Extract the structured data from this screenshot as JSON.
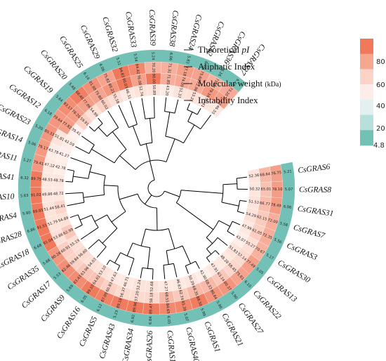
{
  "tracks": [
    {
      "label": "Theoretical ",
      "label_italic": "pI",
      "unit": ""
    },
    {
      "label": "Aliphatic Index",
      "label_italic": "",
      "unit": ""
    },
    {
      "label": "Molecular weight ",
      "label_italic": "",
      "unit": "(kDa)"
    },
    {
      "label": "Instability Index",
      "label_italic": "",
      "unit": ""
    }
  ],
  "legend": {
    "ticks": [
      "80",
      "60",
      "40",
      "20",
      "4.8"
    ],
    "colors": [
      "#f0795c",
      "#f6a88f",
      "#fbd3c7",
      "#fdecea",
      "#e2f1ef",
      "#b7e0db",
      "#73c1b6"
    ]
  },
  "colors": {
    "pi_band": "#73c1b6",
    "branch": "#000000",
    "high": "#f0795c",
    "mid": "#fde0d6",
    "low": "#73c1b6"
  },
  "genes": [
    {
      "name": "CsGRAS6",
      "pi": "5.21",
      "ai": "76.75",
      "mw": "68.64",
      "ii": "52.36"
    },
    {
      "name": "CsGRAS8",
      "pi": "5.07",
      "ai": "78.10",
      "mw": "65.01",
      "ii": "50.32"
    },
    {
      "name": "CsGRAS31",
      "pi": "6.06",
      "ai": "78.49",
      "mw": "66.77",
      "ii": "51.53"
    },
    {
      "name": "CsGRAS7",
      "pi": "5.58",
      "ai": "72.00",
      "mw": "62.15",
      "ii": "54.29"
    },
    {
      "name": "CsGRAS3",
      "pi": "5.56",
      "ai": "72.35",
      "mw": "61.05",
      "ii": "47.99"
    },
    {
      "name": "CsGRAS30",
      "pi": "5.17",
      "ai": "70.67",
      "mw": "55.27",
      "ii": "43.07"
    },
    {
      "name": "CsGRAS13",
      "pi": "5.05",
      "ai": "77.49",
      "mw": "57.14",
      "ii": "51.83"
    },
    {
      "name": "CsGRAS22",
      "pi": "6.10",
      "ai": "75.61",
      "mw": "58.45",
      "ii": "48.28"
    },
    {
      "name": "CsGRAS27",
      "pi": "5.90",
      "ai": "80.37",
      "mw": "63.14",
      "ii": "47.91"
    },
    {
      "name": "CsGRAS21",
      "pi": "5.90",
      "ai": "80.64",
      "mw": "68.33",
      "ii": "42.90"
    },
    {
      "name": "CsGRAS1",
      "pi": "5.99",
      "ai": "88.50",
      "mw": "68.35",
      "ii": "50.29"
    },
    {
      "name": "CsGRAS40",
      "pi": "5.07",
      "ai": "85.39",
      "mw": "62.74",
      "ii": "46.63"
    },
    {
      "name": "CsGRAS15",
      "pi": "6.05",
      "ai": "84.65",
      "mw": "68.55",
      "ii": "47.27"
    },
    {
      "name": "CsGRAS26",
      "pi": "6.84",
      "ai": "89.47",
      "mw": "58.18",
      "ii": "52.68"
    },
    {
      "name": "CsGRAS34",
      "pi": "6.92",
      "ai": "89.96",
      "mw": "57.20",
      "ii": "52.24"
    },
    {
      "name": "CsGRAS43",
      "pi": "5.23",
      "ai": "89.18",
      "mw": "56.37",
      "ii": "46.71"
    },
    {
      "name": "CsGRAS5",
      "pi": "6.12",
      "ai": "87.09",
      "mw": "60.83",
      "ii": "47.63"
    },
    {
      "name": "CsGRAS16",
      "pi": "6.05",
      "ai": "89.10",
      "mw": "64.61",
      "ii": "53.10"
    },
    {
      "name": "CsGRAS9",
      "pi": "5.69",
      "ai": "83.43",
      "mw": "63.96",
      "ii": "54.03"
    },
    {
      "name": "CsGRAS17",
      "pi": "5.53",
      "ai": "82.46",
      "mw": "59.84",
      "ii": "56.60"
    },
    {
      "name": "CsGRAS35",
      "pi": "5.88",
      "ai": "80.28",
      "mw": "60.91",
      "ii": "55.19"
    },
    {
      "name": "CsGRAS18",
      "pi": "6.68",
      "ai": "91.04",
      "mw": "53.86",
      "ii": "62.99"
    },
    {
      "name": "CsGRAS28",
      "pi": "6.86",
      "ai": "91.51",
      "mw": "51.79",
      "ii": "54.89"
    },
    {
      "name": "CsGRAS4",
      "pi": "5.80",
      "ai": "89.93",
      "mw": "51.44",
      "ii": "58.41"
    },
    {
      "name": "CsGRAS10",
      "pi": "5.63",
      "ai": "91.02",
      "mw": "49.86",
      "ii": "48.72"
    },
    {
      "name": "CsGRAS41",
      "pi": "6.32",
      "ai": "89.75",
      "mw": "48.53",
      "ii": "48.78"
    },
    {
      "name": "CsGRAS11",
      "pi": "5.27",
      "ai": "79.41",
      "mw": "47.12",
      "ii": "42.78"
    },
    {
      "name": "CsGRAS14",
      "pi": "5.06",
      "ai": "79.17",
      "mw": "43.78",
      "ii": "41.27"
    },
    {
      "name": "CsGRAS23",
      "pi": "5.20",
      "ai": "80.33",
      "mw": "51.81",
      "ii": "42.59"
    },
    {
      "name": "CsGRAS12",
      "pi": "6.18",
      "ai": "79.64",
      "mw": "77.82",
      "ii": "39.41"
    },
    {
      "name": "CsGRAS19",
      "pi": "5.64",
      "ai": "83.17",
      "mw": "78.26",
      "ii": "59.91"
    },
    {
      "name": "CsGRAS20",
      "pi": "5.48",
      "ai": "88.40",
      "mw": "77.06",
      "ii": "54.99"
    },
    {
      "name": "CsGRAS25",
      "pi": "6.14",
      "ai": "81.88",
      "mw": "75.60",
      "ii": "60.02"
    },
    {
      "name": "CsGRAS29",
      "pi": "6.06",
      "ai": "75.82",
      "mw": "80.21",
      "ii": "55.58"
    },
    {
      "name": "CsGRAS32",
      "pi": "5.51",
      "ai": "94.83",
      "mw": "90.03",
      "ii": "46.31"
    },
    {
      "name": "CsGRAS33",
      "pi": "5.54",
      "ai": "84.42",
      "mw": "76.08",
      "ii": "52.74"
    },
    {
      "name": "CsGRAS39",
      "pi": "5.24",
      "ai": "70.20",
      "mw": "90.00",
      "ii": "50.89"
    },
    {
      "name": "CsGRAS38",
      "pi": "6.06",
      "ai": "71.31",
      "mw": "71.85",
      "ii": "43.20"
    },
    {
      "name": "CsGRAS24",
      "pi": "5.83",
      "ai": "77.18",
      "mw": "74.00",
      "ii": "51.37"
    },
    {
      "name": "CsGRAS42",
      "pi": "6.46",
      "ai": "75.60",
      "mw": "72.98",
      "ii": "53.21"
    },
    {
      "name": "CsGRAS36",
      "pi": "6.16",
      "ai": "71.04",
      "mw": "79.16",
      "ii": "50.41"
    },
    {
      "name": "CsGRAS37",
      "pi": "6.24",
      "ai": "73.20",
      "mw": "77.22",
      "ii": "46.55"
    }
  ]
}
